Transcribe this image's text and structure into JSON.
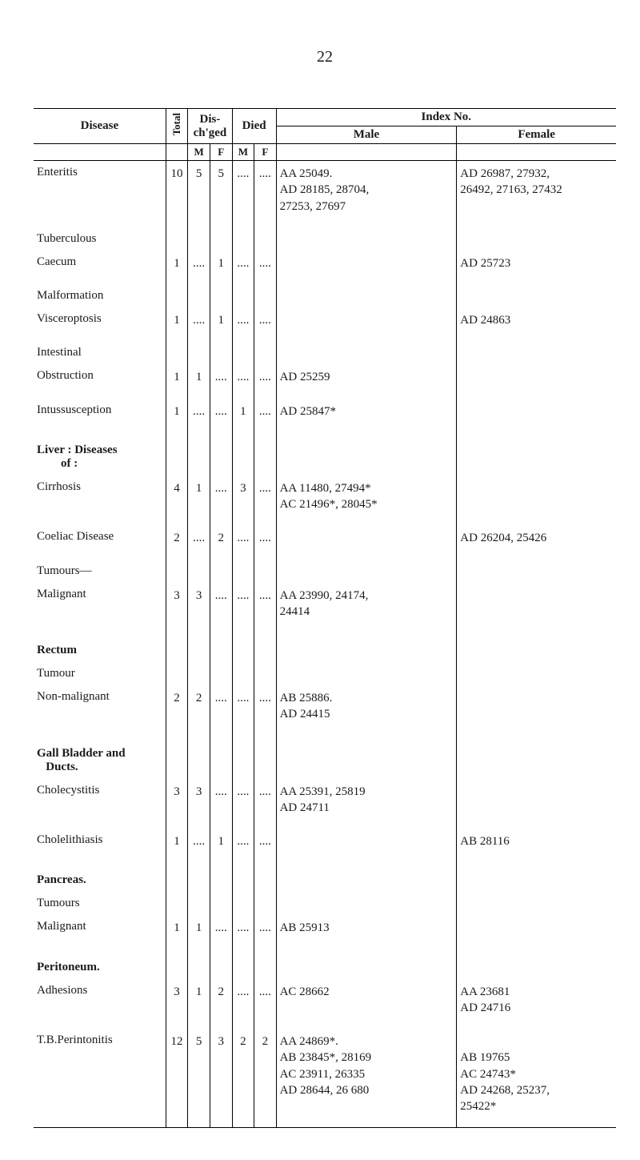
{
  "page_number": "22",
  "header": {
    "disease": "Disease",
    "total": "Total",
    "dis_chged": "Dis-\nch'ged",
    "died": "Died",
    "index_no": "Index No.",
    "male": "Male",
    "female": "Female",
    "M": "M",
    "F": "F"
  },
  "rows": [
    {
      "disease": "Enteritis",
      "total": "10",
      "dm": "5",
      "df": "5",
      "die_m": "....",
      "die_f": "....",
      "male": "AA 25049.\nAD 28185,      28704,\n27253, 27697",
      "female": "AD 26987,          27932,\n26492, 27163, 27432"
    },
    {
      "disease": "Tuberculous",
      "sub": true
    },
    {
      "disease": "Caecum",
      "indent": true,
      "total": "1",
      "dm": "....",
      "df": "1",
      "die_m": "....",
      "die_f": "....",
      "male": "",
      "female": "AD 25723"
    },
    {
      "disease": "Malformation",
      "sub": true
    },
    {
      "disease": "Visceroptosis",
      "indent": true,
      "total": "1",
      "dm": "....",
      "df": "1",
      "die_m": "....",
      "die_f": "....",
      "male": "",
      "female": "AD 24863"
    },
    {
      "disease": "Intestinal",
      "sub": true
    },
    {
      "disease": "Obstruction",
      "indent": true,
      "total": "1",
      "dm": "1",
      "df": "....",
      "die_m": "....",
      "die_f": "....",
      "male": "AD 25259",
      "female": ""
    },
    {
      "disease": "Intussusception",
      "total": "1",
      "dm": "....",
      "df": "....",
      "die_m": "1",
      "die_f": "....",
      "male": "AD 25847*",
      "female": ""
    },
    {
      "disease": "Liver : Diseases\n        of :",
      "section": true
    },
    {
      "disease": "Cirrhosis",
      "indent": false,
      "total": "4",
      "dm": "1",
      "df": "....",
      "die_m": "3",
      "die_f": "....",
      "male": "AA 11480, 27494*\nAC 21496*, 28045*",
      "female": ""
    },
    {
      "disease": "Coeliac Disease",
      "total": "2",
      "dm": "....",
      "df": "2",
      "die_m": "....",
      "die_f": "....",
      "male": "",
      "female": "AD 26204, 25426"
    },
    {
      "disease": "Tumours—",
      "sub": true
    },
    {
      "disease": "Malignant",
      "indent": true,
      "total": "3",
      "dm": "3",
      "df": "....",
      "die_m": "....",
      "die_f": "....",
      "male": "AA 23990,      24174,\n24414",
      "female": ""
    },
    {
      "disease": "Rectum",
      "section": true
    },
    {
      "disease": "Tumour",
      "indent": true,
      "sub": true
    },
    {
      "disease": "Non-malignant",
      "indent": true,
      "total": "2",
      "dm": "2",
      "df": "....",
      "die_m": "....",
      "die_f": "....",
      "male": "AB 25886.\nAD 24415",
      "female": ""
    },
    {
      "disease": "Gall Bladder and\n   Ducts.",
      "section": true
    },
    {
      "disease": "Cholecystitis",
      "indent": false,
      "total": "3",
      "dm": "3",
      "df": "....",
      "die_m": "....",
      "die_f": "....",
      "male": "AA 25391, 25819\nAD 24711",
      "female": ""
    },
    {
      "disease": "Cholelithiasis",
      "total": "1",
      "dm": "....",
      "df": "1",
      "die_m": "....",
      "die_f": "....",
      "male": "",
      "female": "AB 28116"
    },
    {
      "disease": "Pancreas.",
      "section": true
    },
    {
      "disease": "Tumours",
      "indent": true,
      "sub": true
    },
    {
      "disease": "Malignant",
      "indent": true,
      "total": "1",
      "dm": "1",
      "df": "....",
      "die_m": "....",
      "die_f": "....",
      "male": "AB 25913",
      "female": ""
    },
    {
      "disease": "Peritoneum.",
      "section": true
    },
    {
      "disease": "Adhesions",
      "indent": true,
      "total": "3",
      "dm": "1",
      "df": "2",
      "die_m": "....",
      "die_f": "....",
      "male": "AC 28662",
      "female": "AA 23681\nAD 24716"
    },
    {
      "disease": "T.B.Perintonitis",
      "total": "12",
      "dm": "5",
      "df": "3",
      "die_m": "2",
      "die_f": "2",
      "male": "AA 24869*.\nAB 23845*, 28169\nAC 23911, 26335\nAD 28644, 26 680",
      "female": "\nAB 19765\nAC 24743*\nAD 24268, 25237,\n25422*"
    }
  ]
}
